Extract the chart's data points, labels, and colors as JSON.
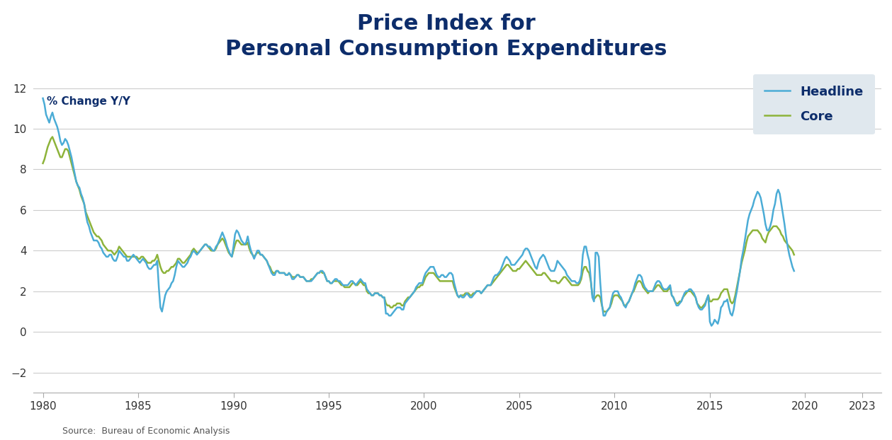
{
  "title": "Price Index for\nPersonal Consumption Expenditures",
  "ylabel_text": "% Change Y/Y",
  "source": "Source:  Bureau of Economic Analysis",
  "headline_color": "#4BACD6",
  "core_color": "#8DB33A",
  "title_color": "#0D2D6B",
  "label_color": "#0D2D6B",
  "source_color": "#555555",
  "legend_bg": "#E0E8EE",
  "ylim": [
    -3,
    13
  ],
  "yticks": [
    -2,
    0,
    2,
    4,
    6,
    8,
    10,
    12
  ],
  "xticks": [
    1980,
    1985,
    1990,
    1995,
    2000,
    2005,
    2010,
    2015,
    2020,
    2023
  ],
  "headline_values": [
    11.5,
    11.2,
    10.7,
    10.5,
    10.3,
    10.6,
    10.8,
    10.5,
    10.3,
    10.1,
    9.8,
    9.4,
    9.2,
    9.3,
    9.5,
    9.4,
    9.2,
    8.9,
    8.6,
    8.2,
    7.8,
    7.4,
    7.2,
    7.1,
    6.8,
    6.6,
    6.3,
    5.8,
    5.4,
    5.2,
    4.9,
    4.7,
    4.5,
    4.5,
    4.5,
    4.4,
    4.2,
    4.1,
    3.9,
    3.8,
    3.7,
    3.7,
    3.8,
    3.8,
    3.6,
    3.5,
    3.5,
    3.7,
    4.0,
    3.9,
    3.8,
    3.7,
    3.7,
    3.5,
    3.5,
    3.6,
    3.7,
    3.8,
    3.7,
    3.6,
    3.5,
    3.4,
    3.5,
    3.6,
    3.5,
    3.4,
    3.2,
    3.1,
    3.1,
    3.2,
    3.3,
    3.3,
    3.5,
    2.2,
    1.2,
    1.0,
    1.4,
    1.8,
    2.0,
    2.1,
    2.2,
    2.4,
    2.5,
    2.8,
    3.2,
    3.5,
    3.4,
    3.3,
    3.2,
    3.2,
    3.3,
    3.4,
    3.6,
    3.7,
    3.9,
    4.0,
    3.9,
    3.8,
    3.9,
    4.0,
    4.1,
    4.2,
    4.3,
    4.3,
    4.2,
    4.2,
    4.1,
    4.0,
    4.0,
    4.2,
    4.3,
    4.5,
    4.7,
    4.9,
    4.7,
    4.5,
    4.2,
    4.0,
    3.8,
    3.7,
    4.2,
    4.8,
    5.0,
    4.9,
    4.7,
    4.5,
    4.4,
    4.3,
    4.4,
    4.7,
    4.3,
    4.0,
    3.8,
    3.6,
    3.8,
    4.0,
    4.0,
    3.8,
    3.8,
    3.7,
    3.6,
    3.5,
    3.3,
    3.1,
    2.9,
    2.8,
    2.8,
    3.0,
    3.0,
    2.9,
    2.9,
    2.9,
    2.9,
    2.8,
    2.8,
    2.9,
    2.8,
    2.6,
    2.6,
    2.7,
    2.8,
    2.8,
    2.7,
    2.7,
    2.7,
    2.6,
    2.5,
    2.5,
    2.5,
    2.5,
    2.6,
    2.7,
    2.8,
    2.9,
    2.9,
    3.0,
    3.0,
    2.9,
    2.7,
    2.5,
    2.5,
    2.4,
    2.4,
    2.5,
    2.6,
    2.6,
    2.5,
    2.5,
    2.4,
    2.3,
    2.3,
    2.3,
    2.3,
    2.4,
    2.5,
    2.5,
    2.4,
    2.3,
    2.4,
    2.5,
    2.6,
    2.5,
    2.4,
    2.4,
    2.1,
    2.0,
    1.9,
    1.8,
    1.8,
    1.9,
    1.9,
    1.9,
    1.8,
    1.8,
    1.7,
    1.7,
    0.9,
    0.9,
    0.8,
    0.8,
    0.9,
    1.0,
    1.1,
    1.2,
    1.2,
    1.2,
    1.1,
    1.1,
    1.4,
    1.5,
    1.6,
    1.7,
    1.8,
    1.9,
    2.0,
    2.2,
    2.3,
    2.4,
    2.4,
    2.4,
    2.7,
    2.9,
    3.0,
    3.1,
    3.2,
    3.2,
    3.2,
    3.0,
    2.8,
    2.7,
    2.7,
    2.8,
    2.8,
    2.7,
    2.7,
    2.8,
    2.9,
    2.9,
    2.8,
    2.4,
    2.1,
    1.8,
    1.7,
    1.8,
    1.7,
    1.7,
    1.8,
    1.9,
    1.8,
    1.7,
    1.7,
    1.8,
    1.9,
    2.0,
    2.0,
    2.0,
    1.9,
    2.0,
    2.1,
    2.2,
    2.3,
    2.3,
    2.3,
    2.5,
    2.7,
    2.8,
    2.8,
    2.9,
    3.0,
    3.2,
    3.4,
    3.6,
    3.7,
    3.6,
    3.5,
    3.3,
    3.3,
    3.3,
    3.4,
    3.5,
    3.6,
    3.7,
    3.8,
    4.0,
    4.1,
    4.1,
    4.0,
    3.8,
    3.6,
    3.4,
    3.2,
    3.1,
    3.4,
    3.6,
    3.7,
    3.8,
    3.7,
    3.5,
    3.3,
    3.1,
    3.0,
    3.0,
    3.0,
    3.2,
    3.5,
    3.4,
    3.3,
    3.2,
    3.1,
    3.0,
    2.8,
    2.7,
    2.6,
    2.5,
    2.5,
    2.5,
    2.4,
    2.4,
    2.5,
    2.8,
    3.8,
    4.2,
    4.2,
    3.8,
    3.5,
    2.6,
    1.7,
    1.5,
    3.9,
    3.9,
    3.7,
    2.4,
    1.4,
    0.8,
    0.8,
    1.0,
    1.1,
    1.2,
    1.6,
    1.9,
    2.0,
    2.0,
    2.0,
    1.8,
    1.7,
    1.5,
    1.3,
    1.2,
    1.4,
    1.5,
    1.7,
    1.9,
    2.1,
    2.4,
    2.6,
    2.8,
    2.8,
    2.7,
    2.4,
    2.2,
    2.1,
    2.0,
    2.0,
    2.0,
    2.0,
    2.2,
    2.4,
    2.5,
    2.5,
    2.4,
    2.2,
    2.1,
    2.1,
    2.1,
    2.2,
    2.3,
    1.8,
    1.7,
    1.5,
    1.3,
    1.3,
    1.4,
    1.5,
    1.7,
    1.9,
    2.0,
    2.0,
    2.1,
    2.1,
    2.0,
    1.9,
    1.7,
    1.4,
    1.2,
    1.1,
    1.1,
    1.2,
    1.3,
    1.6,
    1.8,
    0.5,
    0.3,
    0.4,
    0.6,
    0.5,
    0.4,
    0.7,
    1.2,
    1.3,
    1.5,
    1.5,
    1.6,
    1.2,
    0.9,
    0.8,
    1.1,
    1.6,
    2.0,
    2.5,
    3.0,
    3.6,
    4.0,
    4.5,
    5.0,
    5.5,
    5.8,
    6.0,
    6.2,
    6.5,
    6.7,
    6.9,
    6.8,
    6.6,
    6.2,
    5.8,
    5.3,
    5.0,
    5.0,
    5.2,
    5.5,
    6.0,
    6.3,
    6.8,
    7.0,
    6.8,
    6.3,
    5.8,
    5.3,
    4.7,
    4.2,
    3.8,
    3.5,
    3.2,
    3.0
  ],
  "core_values": [
    8.3,
    8.5,
    8.8,
    9.1,
    9.3,
    9.5,
    9.6,
    9.4,
    9.2,
    9.0,
    8.8,
    8.6,
    8.6,
    8.8,
    9.0,
    9.0,
    8.9,
    8.6,
    8.3,
    8.0,
    7.7,
    7.4,
    7.2,
    7.0,
    6.7,
    6.5,
    6.3,
    5.9,
    5.7,
    5.5,
    5.3,
    5.1,
    4.9,
    4.8,
    4.7,
    4.7,
    4.6,
    4.5,
    4.3,
    4.2,
    4.1,
    4.0,
    4.0,
    4.0,
    3.9,
    3.8,
    3.9,
    4.0,
    4.2,
    4.1,
    4.0,
    3.9,
    3.8,
    3.7,
    3.7,
    3.7,
    3.7,
    3.7,
    3.7,
    3.7,
    3.6,
    3.6,
    3.7,
    3.7,
    3.6,
    3.5,
    3.4,
    3.4,
    3.4,
    3.5,
    3.5,
    3.6,
    3.8,
    3.5,
    3.2,
    3.0,
    2.9,
    2.9,
    3.0,
    3.0,
    3.1,
    3.2,
    3.2,
    3.3,
    3.4,
    3.6,
    3.6,
    3.5,
    3.4,
    3.4,
    3.5,
    3.6,
    3.7,
    3.8,
    4.0,
    4.1,
    4.0,
    3.9,
    3.9,
    4.0,
    4.1,
    4.2,
    4.3,
    4.3,
    4.2,
    4.1,
    4.0,
    4.0,
    4.0,
    4.1,
    4.3,
    4.4,
    4.5,
    4.6,
    4.5,
    4.3,
    4.1,
    3.9,
    3.8,
    3.7,
    4.0,
    4.3,
    4.5,
    4.5,
    4.4,
    4.3,
    4.3,
    4.3,
    4.3,
    4.4,
    4.1,
    3.9,
    3.8,
    3.7,
    3.8,
    3.9,
    3.9,
    3.8,
    3.8,
    3.7,
    3.6,
    3.5,
    3.3,
    3.2,
    3.0,
    2.9,
    2.9,
    3.0,
    3.0,
    2.9,
    2.9,
    2.9,
    2.9,
    2.8,
    2.8,
    2.9,
    2.8,
    2.7,
    2.7,
    2.7,
    2.8,
    2.8,
    2.7,
    2.7,
    2.7,
    2.6,
    2.5,
    2.5,
    2.5,
    2.6,
    2.6,
    2.7,
    2.8,
    2.9,
    2.9,
    3.0,
    2.9,
    2.9,
    2.7,
    2.5,
    2.5,
    2.4,
    2.4,
    2.5,
    2.5,
    2.5,
    2.5,
    2.4,
    2.3,
    2.3,
    2.2,
    2.2,
    2.2,
    2.2,
    2.3,
    2.4,
    2.4,
    2.3,
    2.3,
    2.4,
    2.5,
    2.4,
    2.3,
    2.3,
    2.0,
    1.9,
    1.9,
    1.8,
    1.8,
    1.9,
    1.9,
    1.9,
    1.8,
    1.8,
    1.7,
    1.7,
    1.4,
    1.3,
    1.3,
    1.2,
    1.2,
    1.3,
    1.3,
    1.4,
    1.4,
    1.4,
    1.3,
    1.3,
    1.5,
    1.6,
    1.7,
    1.7,
    1.8,
    1.9,
    2.0,
    2.1,
    2.2,
    2.2,
    2.3,
    2.3,
    2.5,
    2.7,
    2.8,
    2.9,
    2.9,
    2.9,
    2.9,
    2.8,
    2.7,
    2.6,
    2.5,
    2.5,
    2.5,
    2.5,
    2.5,
    2.5,
    2.5,
    2.5,
    2.5,
    2.2,
    2.0,
    1.8,
    1.7,
    1.8,
    1.8,
    1.8,
    1.9,
    1.9,
    1.9,
    1.8,
    1.8,
    1.9,
    1.9,
    2.0,
    2.0,
    2.0,
    1.9,
    2.0,
    2.1,
    2.2,
    2.3,
    2.3,
    2.3,
    2.4,
    2.5,
    2.6,
    2.7,
    2.8,
    2.9,
    3.0,
    3.1,
    3.2,
    3.3,
    3.3,
    3.2,
    3.1,
    3.0,
    3.0,
    3.0,
    3.1,
    3.1,
    3.2,
    3.3,
    3.4,
    3.5,
    3.4,
    3.3,
    3.2,
    3.1,
    3.0,
    2.9,
    2.8,
    2.8,
    2.8,
    2.8,
    2.9,
    2.9,
    2.8,
    2.7,
    2.6,
    2.5,
    2.5,
    2.5,
    2.5,
    2.4,
    2.4,
    2.5,
    2.6,
    2.7,
    2.7,
    2.6,
    2.5,
    2.4,
    2.3,
    2.3,
    2.3,
    2.3,
    2.3,
    2.4,
    2.6,
    3.0,
    3.2,
    3.2,
    3.0,
    2.9,
    2.5,
    1.8,
    1.6,
    1.7,
    1.8,
    1.8,
    1.7,
    1.3,
    1.0,
    1.0,
    1.0,
    1.1,
    1.2,
    1.4,
    1.7,
    1.8,
    1.8,
    1.8,
    1.7,
    1.6,
    1.5,
    1.3,
    1.3,
    1.4,
    1.5,
    1.7,
    1.9,
    2.0,
    2.2,
    2.4,
    2.5,
    2.5,
    2.4,
    2.2,
    2.1,
    2.0,
    1.9,
    2.0,
    2.0,
    2.0,
    2.1,
    2.2,
    2.3,
    2.3,
    2.2,
    2.1,
    2.0,
    2.0,
    2.0,
    2.1,
    2.2,
    1.8,
    1.7,
    1.5,
    1.4,
    1.4,
    1.5,
    1.5,
    1.7,
    1.8,
    1.9,
    2.0,
    2.0,
    2.0,
    1.9,
    1.8,
    1.7,
    1.4,
    1.3,
    1.2,
    1.2,
    1.3,
    1.4,
    1.6,
    1.8,
    1.5,
    1.5,
    1.6,
    1.6,
    1.6,
    1.6,
    1.7,
    1.9,
    2.0,
    2.1,
    2.1,
    2.1,
    1.8,
    1.5,
    1.4,
    1.5,
    1.8,
    2.2,
    2.6,
    3.0,
    3.4,
    3.7,
    4.0,
    4.4,
    4.7,
    4.8,
    4.9,
    5.0,
    5.0,
    5.0,
    5.0,
    4.9,
    4.8,
    4.6,
    4.5,
    4.4,
    4.7,
    4.9,
    5.0,
    5.1,
    5.2,
    5.2,
    5.2,
    5.1,
    5.0,
    4.8,
    4.7,
    4.5,
    4.4,
    4.3,
    4.2,
    4.1,
    4.0,
    3.8
  ]
}
